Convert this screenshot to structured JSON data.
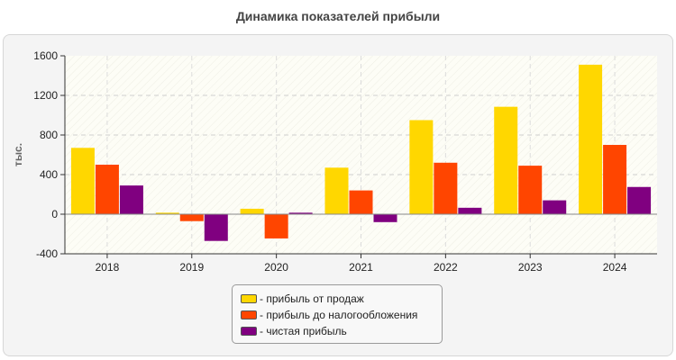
{
  "chart_data": {
    "type": "bar",
    "title": "Динамика показателей прибыли",
    "ylabel": "тыс.",
    "xlabel": "",
    "categories": [
      "2018",
      "2019",
      "2020",
      "2021",
      "2022",
      "2023",
      "2024"
    ],
    "ylim": [
      -400,
      1600
    ],
    "yticks": [
      -400,
      0,
      400,
      800,
      1200,
      1600
    ],
    "grid": true,
    "legend_position": "bottom",
    "series": [
      {
        "name": "- прибыль от продаж",
        "color": "#FFD700",
        "values": [
          670,
          15,
          55,
          470,
          950,
          1085,
          1510
        ]
      },
      {
        "name": "- прибыль до налогообложения",
        "color": "#FF4500",
        "values": [
          500,
          -70,
          -245,
          240,
          520,
          490,
          700
        ]
      },
      {
        "name": "- чистая прибыль",
        "color": "#800080",
        "values": [
          290,
          -270,
          15,
          -80,
          65,
          140,
          275
        ]
      }
    ]
  }
}
